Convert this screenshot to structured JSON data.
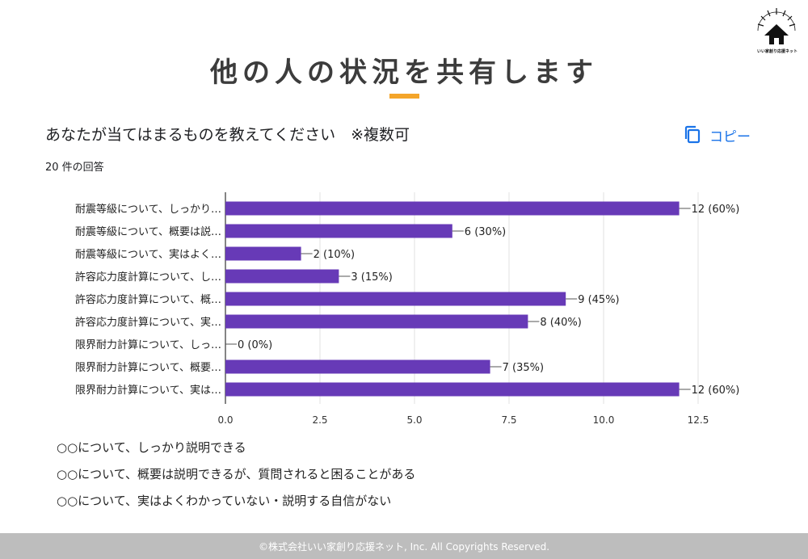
{
  "header": {
    "title": "他の人の状況を共有します",
    "accent_color": "#F4A52A",
    "logo_icon": "company-logo-icon",
    "logo_caption": "いい家創り応援ネット"
  },
  "question": {
    "text": "あなたが当てはまるものを教えてください　※複数可",
    "response_count": "20 件の回答",
    "copy_label": "コピー",
    "copy_icon": "copy-icon"
  },
  "chart_data": {
    "type": "bar",
    "orientation": "horizontal",
    "categories": [
      "耐震等級について、しっかり…",
      "耐震等級について、概要は説…",
      "耐震等級について、実はよく…",
      "許容応力度計算について、し…",
      "許容応力度計算について、概…",
      "許容応力度計算について、実…",
      "限界耐力計算について、しっ…",
      "限界耐力計算について、概要…",
      "限界耐力計算について、実は…"
    ],
    "values": [
      12,
      6,
      2,
      3,
      9,
      8,
      0,
      7,
      12
    ],
    "data_labels": [
      "12 (60%)",
      "6 (30%)",
      "2 (10%)",
      "3 (15%)",
      "9 (45%)",
      "8 (40%)",
      "0 (0%)",
      "7 (35%)",
      "12 (60%)"
    ],
    "xlim": [
      0,
      12.5
    ],
    "xticks": [
      "0.0",
      "2.5",
      "5.0",
      "7.5",
      "10.0",
      "12.5"
    ],
    "bar_color": "#673AB7",
    "grid": true
  },
  "legend": {
    "items": [
      "○○について、しっかり説明できる",
      "○○について、概要は説明できるが、質問されると困ることがある",
      "○○について、実はよくわかっていない・説明する自信がない"
    ]
  },
  "footer": {
    "text": "©株式会社いい家創り応援ネット, Inc. All Copyrights Reserved."
  },
  "colors": {
    "link_blue": "#1A73E8",
    "footer_bg": "#BDBDBD"
  }
}
